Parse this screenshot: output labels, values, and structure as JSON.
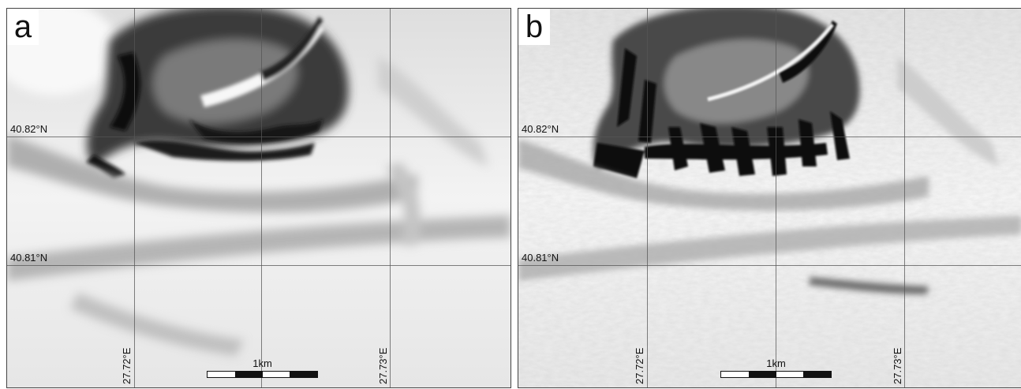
{
  "panels": [
    {
      "letter": "a",
      "latitude_labels": [
        "40.82°N",
        "40.81°N"
      ],
      "longitude_labels": [
        "27.72°E",
        "27.73°E"
      ],
      "scale_label": "1km",
      "style": "smoothed hillshade"
    },
    {
      "letter": "b",
      "latitude_labels": [
        "40.82°N",
        "40.81°N"
      ],
      "longitude_labels": [
        "27.72°E",
        "27.73°E"
      ],
      "scale_label": "1km",
      "style": "high-resolution hillshade"
    }
  ],
  "colors": {
    "terrain_light": "#f4f4f4",
    "terrain_mid": "#b8b8b8",
    "terrain_dark": "#1a1a1a",
    "grid": "#555555"
  }
}
